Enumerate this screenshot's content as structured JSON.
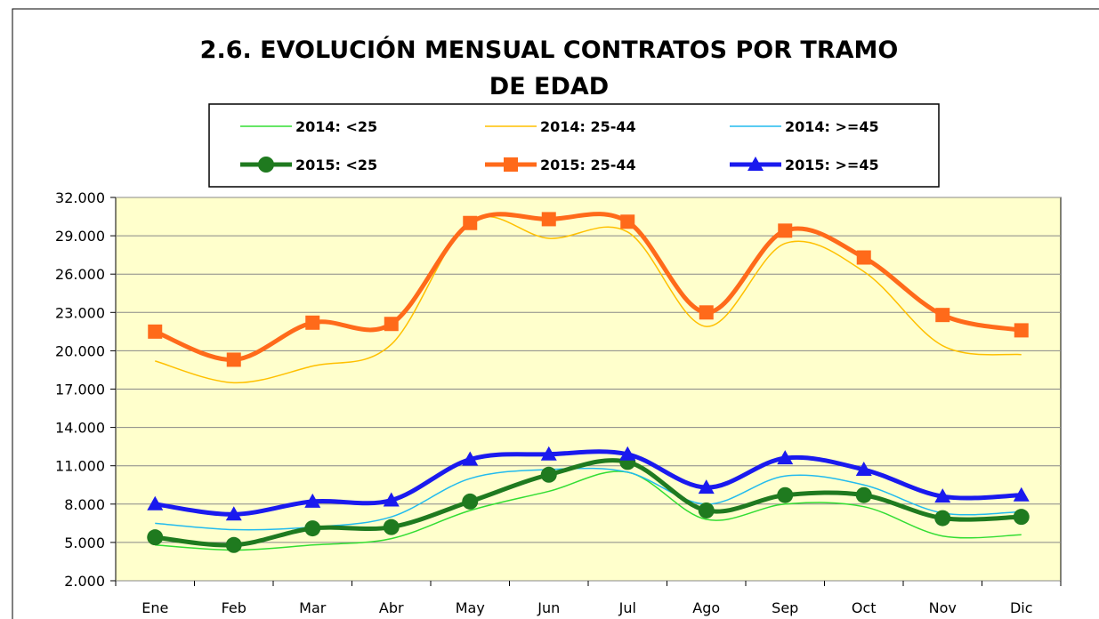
{
  "chart_data": {
    "type": "line",
    "title": "2.6. EVOLUCIÓN MENSUAL CONTRATOS POR TRAMO DE EDAD",
    "categories": [
      "Ene",
      "Feb",
      "Mar",
      "Abr",
      "May",
      "Jun",
      "Jul",
      "Ago",
      "Sep",
      "Oct",
      "Nov",
      "Dic"
    ],
    "series": [
      {
        "name": "2014: <25",
        "color": "#33dd33",
        "width": 1.5,
        "values": [
          4800,
          4400,
          4800,
          5300,
          7500,
          9000,
          10500,
          6800,
          8000,
          7800,
          5500,
          5600
        ]
      },
      {
        "name": "2014: 25-44",
        "color": "#ffc000",
        "width": 1.5,
        "values": [
          19200,
          17500,
          18800,
          20500,
          30100,
          28800,
          29300,
          21900,
          28400,
          26200,
          20400,
          19700
        ]
      },
      {
        "name": "2014: >=45",
        "color": "#22bbee",
        "width": 1.5,
        "values": [
          6500,
          6000,
          6200,
          7000,
          10000,
          10700,
          10500,
          8000,
          10200,
          9500,
          7300,
          7400
        ]
      },
      {
        "name": "2015: <25",
        "color": "#1f7a1f",
        "width": 5,
        "marker": "circle",
        "values": [
          5400,
          4800,
          6100,
          6200,
          8200,
          10300,
          11300,
          7500,
          8700,
          8700,
          6900,
          7000
        ]
      },
      {
        "name": "2015: 25-44",
        "color": "#ff6a1a",
        "width": 5,
        "marker": "square",
        "values": [
          21500,
          19300,
          22200,
          22100,
          30000,
          30300,
          30100,
          23000,
          29400,
          27300,
          22800,
          21600
        ]
      },
      {
        "name": "2015: >=45",
        "color": "#1a1aee",
        "width": 5,
        "marker": "triangle",
        "values": [
          8000,
          7200,
          8200,
          8300,
          11500,
          11900,
          11900,
          9300,
          11600,
          10700,
          8600,
          8700
        ]
      }
    ],
    "ylim": [
      2000,
      32000
    ],
    "yticks": [
      {
        "value": 2000,
        "label": "2.000"
      },
      {
        "value": 5000,
        "label": "5.000"
      },
      {
        "value": 8000,
        "label": "8.000"
      },
      {
        "value": 11000,
        "label": "11.000"
      },
      {
        "value": 14000,
        "label": "14.000"
      },
      {
        "value": 17000,
        "label": "17.000"
      },
      {
        "value": 20000,
        "label": "20.000"
      },
      {
        "value": 23000,
        "label": "23.000"
      },
      {
        "value": 26000,
        "label": "26.000"
      },
      {
        "value": 29000,
        "label": "29.000"
      },
      {
        "value": 32000,
        "label": "32.000"
      }
    ],
    "grid": true,
    "plot_background": "#ffffcc"
  }
}
